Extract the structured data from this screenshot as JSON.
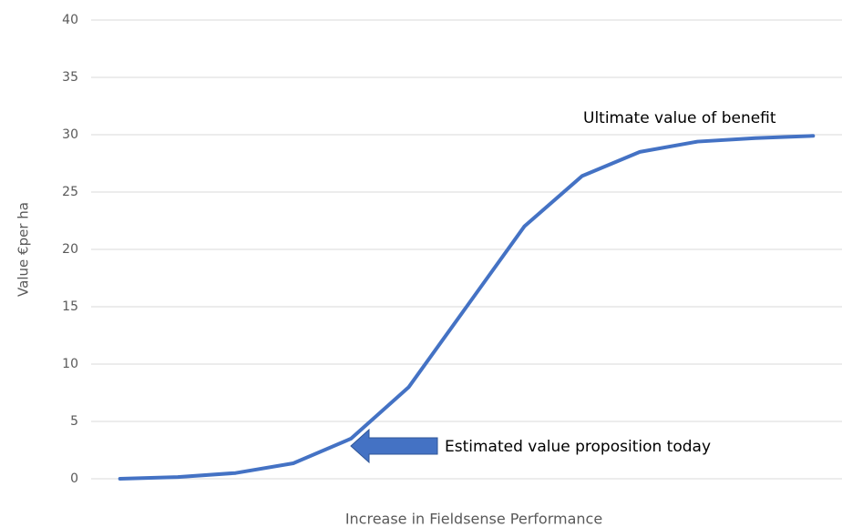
{
  "chart_data": {
    "type": "line",
    "y_label": "Value €per ha",
    "x_label": "Increase in Fieldsense Performance",
    "annotations": [
      "Ultimate value of benefit",
      "Estimated value proposition today"
    ],
    "categories": [
      null,
      null,
      null,
      null,
      null,
      null,
      null,
      null,
      null,
      null,
      null,
      null,
      null
    ],
    "values": [
      0,
      0.15,
      0.5,
      1.35,
      3.5,
      8,
      15,
      22,
      26.4,
      28.5,
      29.4,
      29.7,
      29.9
    ],
    "color": "#4472c4",
    "ylim": [
      0,
      40
    ],
    "yticks": [
      0,
      5,
      10,
      15,
      20,
      25,
      30,
      35,
      40
    ],
    "grid": true
  }
}
